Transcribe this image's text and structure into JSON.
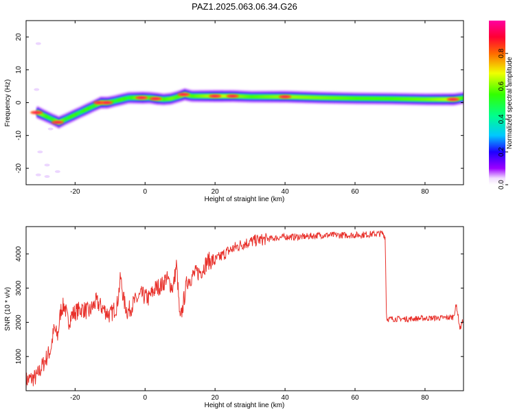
{
  "title": "PAZ1.2025.063.06.34.G26",
  "chart_data": [
    {
      "type": "heatmap",
      "xlabel": "Height of straight line (km)",
      "ylabel": "Frequency (Hz)",
      "xlim": [
        -34,
        91
      ],
      "ylim": [
        -25,
        25
      ],
      "x_ticks": [
        -20,
        0,
        20,
        40,
        60,
        80
      ],
      "y_ticks": [
        -20,
        -10,
        0,
        10,
        20
      ],
      "colorbar": {
        "label": "Normalized spectral amplitude",
        "range": [
          0,
          1
        ],
        "ticks": [
          "0.0",
          "0.2",
          "0.4",
          "0.6",
          "0.8"
        ],
        "colormap": "gist_rainbow_r (magenta-red top, purple/white bottom)"
      },
      "ridge_frequency": {
        "x": [
          -31,
          -29,
          -27,
          -25,
          -23,
          -21,
          -19,
          -17,
          -15,
          -13,
          -11,
          -9,
          -7,
          -5,
          -3,
          -1,
          1,
          3,
          5,
          7,
          9,
          11,
          13,
          15,
          20,
          25,
          30,
          40,
          50,
          60,
          70,
          80,
          88,
          91
        ],
        "y": [
          -3,
          -4,
          -5,
          -6,
          -5,
          -4,
          -3,
          -2,
          -1,
          0,
          0,
          0.5,
          1,
          1.5,
          1.5,
          1.5,
          1.5,
          1.2,
          1,
          1.2,
          1.8,
          2.5,
          2,
          2,
          2,
          2,
          1.8,
          1.8,
          1.5,
          1.3,
          1.2,
          1,
          1,
          1.5
        ]
      },
      "ridge_amplitude": [
        0.9,
        0.6,
        0.5,
        0.9,
        0.5,
        0.6,
        0.5,
        0.6,
        0.5,
        0.9,
        0.8,
        0.5,
        0.6,
        0.5,
        0.7,
        0.9,
        0.6,
        0.9,
        0.6,
        0.7,
        0.6,
        0.9,
        0.6,
        0.7,
        0.9,
        0.8,
        0.6,
        0.8,
        0.7,
        0.6,
        0.6,
        0.7,
        0.9,
        0.5
      ]
    },
    {
      "type": "line",
      "xlabel": "Height of straight line (km)",
      "ylabel": "SNR (10 * v/v)",
      "xlim": [
        -34,
        91
      ],
      "ylim": [
        0,
        4800
      ],
      "x_ticks": [
        -20,
        0,
        20,
        40,
        60,
        80
      ],
      "y_ticks": [
        1000,
        2000,
        3000,
        4000
      ],
      "color": "#e8302a",
      "series": [
        {
          "x": [
            -34,
            -31,
            -29,
            -27,
            -26,
            -25,
            -24,
            -23,
            -22,
            -21,
            -20,
            -18,
            -16,
            -14,
            -12,
            -10,
            -8,
            -7,
            -6,
            -5,
            -3,
            -1,
            1,
            3,
            5,
            6,
            8,
            9,
            10,
            11,
            12,
            14,
            16,
            18,
            20,
            24,
            28,
            32,
            36,
            40,
            45,
            50,
            55,
            60,
            65,
            68,
            68.6,
            69,
            72,
            75,
            80,
            85,
            88,
            89,
            90,
            91
          ],
          "y": [
            300,
            400,
            800,
            1200,
            1800,
            1600,
            2400,
            2500,
            2000,
            2200,
            2300,
            2400,
            2300,
            2600,
            2400,
            2200,
            2500,
            3300,
            2600,
            2300,
            2600,
            2800,
            2700,
            3000,
            3100,
            3300,
            3000,
            3700,
            2000,
            2600,
            3200,
            3400,
            3500,
            3800,
            3800,
            4100,
            4300,
            4400,
            4450,
            4500,
            4500,
            4550,
            4550,
            4550,
            4580,
            4600,
            4500,
            2100,
            2100,
            2100,
            2120,
            2130,
            2150,
            2500,
            1800,
            2100
          ]
        }
      ]
    }
  ]
}
